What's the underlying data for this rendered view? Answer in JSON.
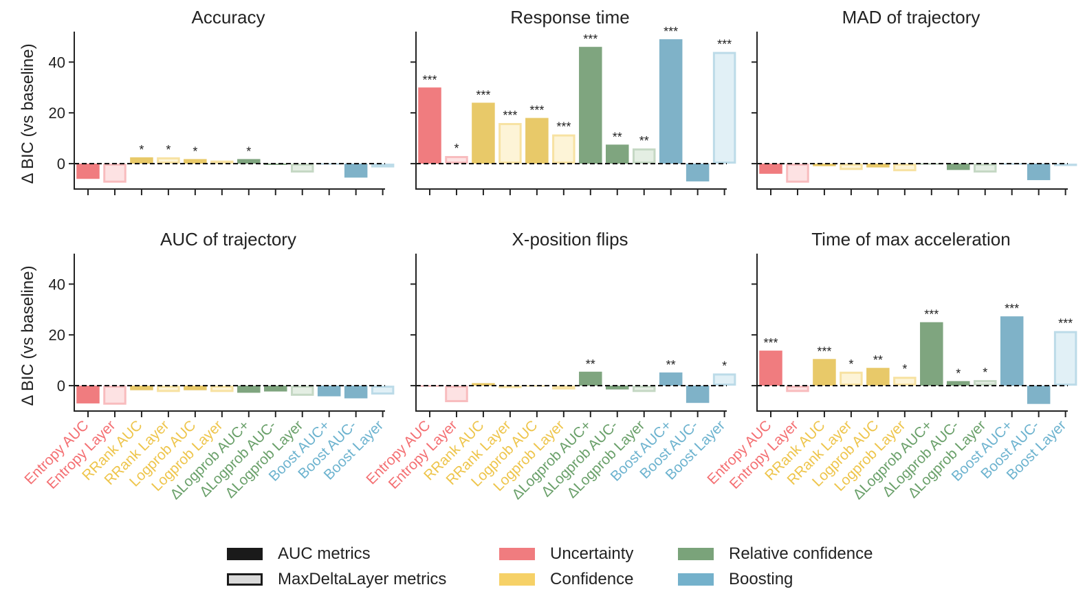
{
  "chart_data": {
    "type": "bar",
    "ylabel": "Δ BIC (vs baseline)",
    "ylim": [
      -10,
      52
    ],
    "yticks": [
      0,
      20,
      40
    ],
    "categories": [
      "Entropy AUC",
      "Entropy Layer",
      "RRank AUC",
      "RRank Layer",
      "Logprob AUC",
      "Logprob Layer",
      "ΔLogprob AUC+",
      "ΔLogprob AUC-",
      "ΔLogprob Layer",
      "Boost AUC+",
      "Boost AUC-",
      "Boost Layer"
    ],
    "category_groups": [
      "Uncertainty",
      "Uncertainty",
      "Confidence",
      "Confidence",
      "Confidence",
      "Confidence",
      "Relative confidence",
      "Relative confidence",
      "Relative confidence",
      "Boosting",
      "Boosting",
      "Boosting"
    ],
    "category_kinds": [
      "AUC",
      "Layer",
      "AUC",
      "Layer",
      "AUC",
      "Layer",
      "AUC",
      "AUC",
      "Layer",
      "AUC",
      "AUC",
      "Layer"
    ],
    "panels": [
      {
        "title": "Accuracy",
        "values": [
          -6,
          -7.5,
          2.5,
          2.5,
          1.8,
          1.2,
          1.8,
          -0.5,
          -3.5,
          -0.3,
          -5.5,
          -1.5
        ],
        "sig": [
          "",
          "",
          "*",
          "*",
          "*",
          "",
          "*",
          "",
          "",
          "",
          "",
          ""
        ]
      },
      {
        "title": "Response time",
        "values": [
          30,
          3,
          24,
          16,
          18,
          11.5,
          46,
          7.5,
          6,
          49,
          -7,
          44
        ],
        "sig": [
          "***",
          "*",
          "***",
          "***",
          "***",
          "***",
          "***",
          "**",
          "**",
          "***",
          "",
          "***"
        ]
      },
      {
        "title": "MAD of trajectory",
        "values": [
          -4,
          -7.5,
          -1,
          -2.5,
          -1.5,
          -3,
          -0.3,
          -2.5,
          -3.5,
          -0.3,
          -6.5,
          -0.8
        ],
        "sig": [
          "",
          "",
          "",
          "",
          "",
          "",
          "",
          "",
          "",
          "",
          "",
          ""
        ]
      },
      {
        "title": "AUC of trajectory",
        "values": [
          -7,
          -7.5,
          -1.8,
          -2.5,
          -1.8,
          -2.5,
          -2.8,
          -2.3,
          -4,
          -4.2,
          -5,
          -3.5
        ],
        "sig": [
          "",
          "",
          "",
          "",
          "",
          "",
          "",
          "",
          "",
          "",
          "",
          ""
        ]
      },
      {
        "title": "X-position flips",
        "values": [
          -0.3,
          -6.5,
          1,
          -0.8,
          -0.3,
          -1.5,
          5.5,
          -1.5,
          -2.5,
          5.2,
          -6.8,
          4.8
        ],
        "sig": [
          "",
          "",
          "",
          "",
          "",
          "",
          "**",
          "",
          "",
          "**",
          "",
          "*"
        ]
      },
      {
        "title": "Time of max acceleration",
        "values": [
          13.8,
          -2.5,
          10.5,
          5.5,
          7,
          3.5,
          25,
          1.8,
          2.2,
          27.3,
          -7.2,
          21.5
        ],
        "sig": [
          "***",
          "",
          "***",
          "*",
          "**",
          "*",
          "***",
          "*",
          "*",
          "***",
          "",
          "***"
        ]
      }
    ],
    "legend": {
      "kinds": [
        {
          "label": "AUC metrics",
          "key": "AUC"
        },
        {
          "label": "MaxDeltaLayer metrics",
          "key": "Layer"
        }
      ],
      "groups": [
        {
          "label": "Uncertainty",
          "color": "#f07c7f"
        },
        {
          "label": "Confidence",
          "color": "#f6d167"
        },
        {
          "label": "Relative confidence",
          "color": "#7aa37a"
        },
        {
          "label": "Boosting",
          "color": "#74b1cb"
        }
      ]
    },
    "colors": {
      "Uncertainty": {
        "fill": "#f07c7f",
        "light": "#fde2e3",
        "edge": "#f8bcbe",
        "text": "#f46f72"
      },
      "Confidence": {
        "fill": "#e8c969",
        "light": "#fdf4d7",
        "edge": "#f7e2a2",
        "text": "#eec54c"
      },
      "Relative confidence": {
        "fill": "#7fa57f",
        "light": "#e4eee3",
        "edge": "#c5d8c4",
        "text": "#6aa06a"
      },
      "Boosting": {
        "fill": "#7fb2c8",
        "light": "#e1f0f6",
        "edge": "#bcdbe8",
        "text": "#6db3cf"
      }
    },
    "legend_colors": {
      "auc": "#1a1a1a",
      "layer_fill": "#d9d9d9",
      "layer_edge": "#1a1a1a"
    }
  }
}
